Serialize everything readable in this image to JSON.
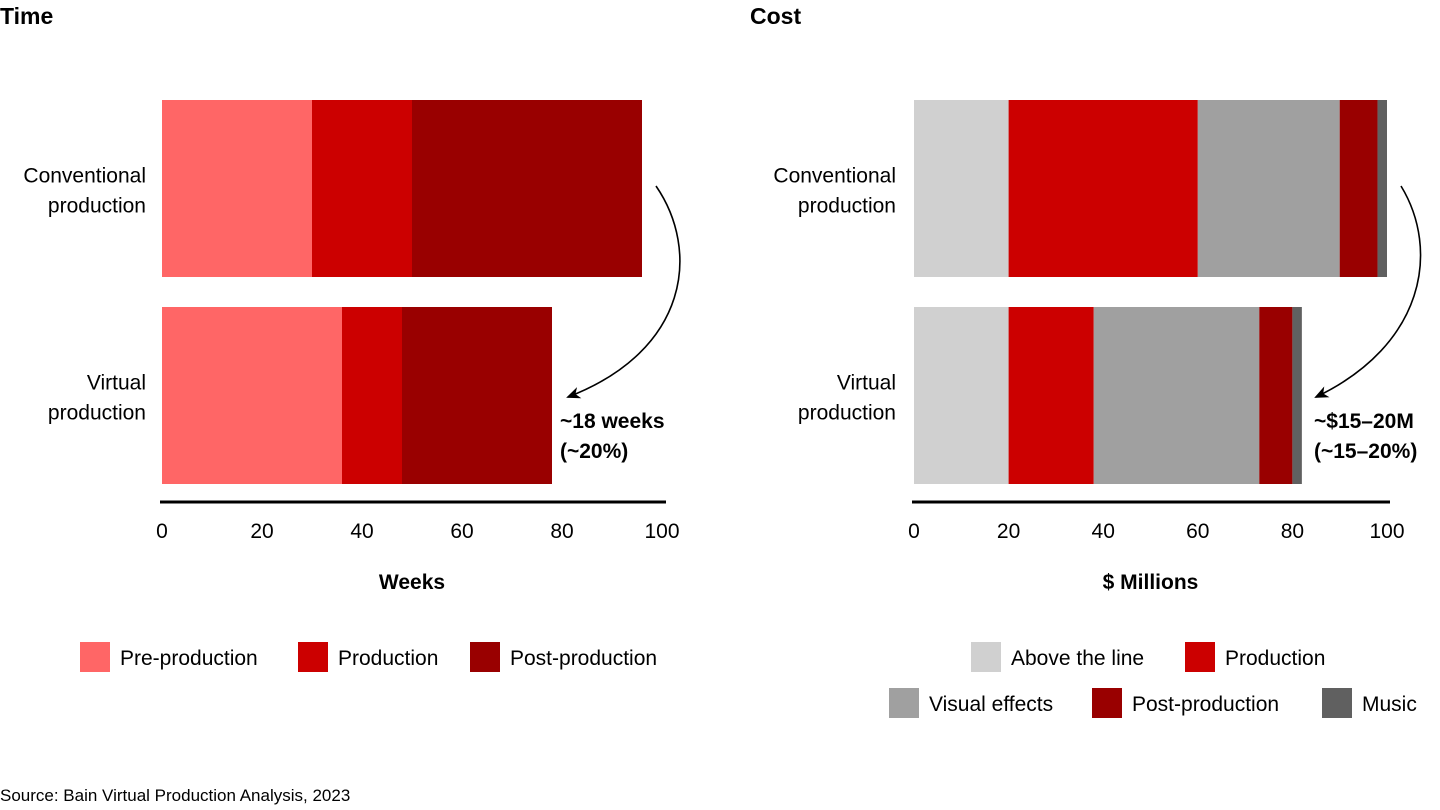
{
  "chart_data": [
    {
      "type": "bar",
      "orientation": "horizontal",
      "stacked": true,
      "title": "Time",
      "xlabel": "Weeks",
      "ylabel": "",
      "xlim": [
        0,
        100
      ],
      "ticks": [
        0,
        20,
        40,
        60,
        80,
        100
      ],
      "grid": false,
      "legend_position": "bottom",
      "categories": [
        "Conventional production",
        "Virtual production"
      ],
      "series": [
        {
          "name": "Pre-production",
          "color": "#FF6666",
          "values": [
            30,
            36
          ]
        },
        {
          "name": "Production",
          "color": "#CC0000",
          "values": [
            20,
            12
          ]
        },
        {
          "name": "Post-production",
          "color": "#990000",
          "values": [
            46,
            30
          ]
        }
      ],
      "annotation": [
        "~18 weeks",
        "(~20%)"
      ]
    },
    {
      "type": "bar",
      "orientation": "horizontal",
      "stacked": true,
      "title": "Cost",
      "xlabel": "$ Millions",
      "ylabel": "",
      "xlim": [
        0,
        100
      ],
      "ticks": [
        0,
        20,
        40,
        60,
        80,
        100
      ],
      "grid": false,
      "legend_position": "bottom",
      "categories": [
        "Conventional production",
        "Virtual production"
      ],
      "series": [
        {
          "name": "Above the line",
          "color": "#D0D0D0",
          "values": [
            20,
            20
          ]
        },
        {
          "name": "Production",
          "color": "#CC0000",
          "values": [
            40,
            18
          ]
        },
        {
          "name": "Visual effects",
          "color": "#A0A0A0",
          "values": [
            30,
            35
          ]
        },
        {
          "name": "Post-production",
          "color": "#990000",
          "values": [
            8,
            7
          ]
        },
        {
          "name": "Music",
          "color": "#606060",
          "values": [
            2,
            2
          ]
        }
      ],
      "annotation": [
        "~$15–20M",
        "(~15–20%)"
      ]
    }
  ],
  "category_labels": [
    [
      "Conventional",
      "production"
    ],
    [
      "Virtual",
      "production"
    ]
  ],
  "source": "Source: Bain Virtual Production Analysis, 2023"
}
